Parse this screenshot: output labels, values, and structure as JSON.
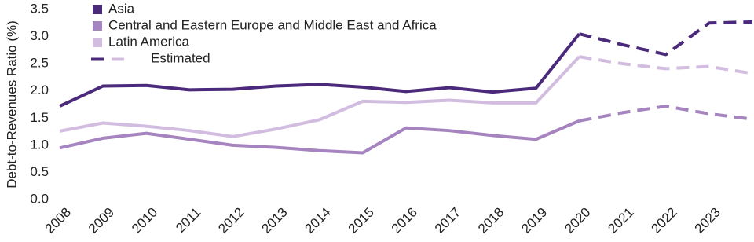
{
  "chart_data": {
    "type": "line",
    "y_label": "Debt-to-Revenues Ratio (%)",
    "x": [
      2008,
      2009,
      2010,
      2011,
      2012,
      2013,
      2014,
      2015,
      2016,
      2017,
      2018,
      2019,
      2020,
      2021,
      2022,
      2023,
      2024
    ],
    "xlim": [
      2008,
      2024
    ],
    "xticks": [
      2008,
      2009,
      2010,
      2011,
      2012,
      2013,
      2014,
      2015,
      2016,
      2017,
      2018,
      2019,
      2020,
      2021,
      2022,
      2023
    ],
    "ylim": [
      0,
      3.5
    ],
    "yticks": [
      {
        "value": 0,
        "label": "0.0"
      },
      0.5,
      {
        "value": 1,
        "label": "1.0"
      },
      1.5,
      {
        "value": 2,
        "label": "2.0"
      },
      2.5,
      {
        "value": 3,
        "label": "3.0"
      },
      3.5
    ],
    "estimated_from": 2020,
    "estimated_label": "Estimated",
    "legend": "top-left",
    "series": [
      {
        "name": "Asia",
        "color": "#4b2a7b",
        "values": [
          1.72,
          2.09,
          2.1,
          2.02,
          2.03,
          2.09,
          2.12,
          2.07,
          1.99,
          2.06,
          1.98,
          2.05,
          3.05,
          2.85,
          2.67,
          3.25,
          3.27
        ]
      },
      {
        "name": "Central and Eastern Europe and Middle East and Africa",
        "color": "#a584c0",
        "values": [
          0.95,
          1.13,
          1.22,
          1.11,
          1.0,
          0.96,
          0.9,
          0.86,
          1.32,
          1.27,
          1.18,
          1.11,
          1.45,
          1.6,
          1.72,
          1.58,
          1.48
        ]
      },
      {
        "name": "Latin America",
        "color": "#d2bde0",
        "values": [
          1.26,
          1.41,
          1.35,
          1.27,
          1.16,
          1.3,
          1.47,
          1.81,
          1.79,
          1.83,
          1.78,
          1.78,
          2.63,
          2.5,
          2.41,
          2.45,
          2.32
        ]
      }
    ]
  }
}
